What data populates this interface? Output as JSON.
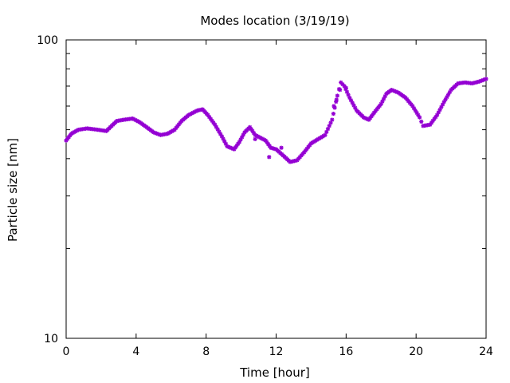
{
  "chart_data": {
    "type": "scatter",
    "title": "Modes location (3/19/19)",
    "xlabel": "Time [hour]",
    "ylabel": "Particle size [nm]",
    "xlim": [
      0,
      24
    ],
    "ylim": [
      10,
      100
    ],
    "yscale": "log",
    "grid": false,
    "xticks": [
      "0",
      "4",
      "8",
      "12",
      "16",
      "20",
      "24"
    ],
    "yticks": [
      "10",
      "100"
    ],
    "series_color": "#9400d3",
    "marker": "asterisk",
    "anchors": [
      [
        0.0,
        46
      ],
      [
        0.3,
        48.5
      ],
      [
        0.7,
        50
      ],
      [
        1.2,
        50.5
      ],
      [
        1.8,
        50
      ],
      [
        2.3,
        49.5
      ],
      [
        2.6,
        51.5
      ],
      [
        2.9,
        53.5
      ],
      [
        3.3,
        54
      ],
      [
        3.8,
        54.5
      ],
      [
        4.2,
        53
      ],
      [
        4.6,
        51
      ],
      [
        5.0,
        49
      ],
      [
        5.4,
        48
      ],
      [
        5.8,
        48.5
      ],
      [
        6.2,
        50
      ],
      [
        6.6,
        53.5
      ],
      [
        7.0,
        56
      ],
      [
        7.5,
        58
      ],
      [
        7.8,
        58.5
      ],
      [
        8.1,
        56
      ],
      [
        8.5,
        52
      ],
      [
        8.9,
        47.5
      ],
      [
        9.2,
        44
      ],
      [
        9.6,
        43
      ],
      [
        9.9,
        45.5
      ],
      [
        10.2,
        49
      ],
      [
        10.5,
        51
      ],
      [
        10.8,
        48
      ],
      [
        11.1,
        47
      ],
      [
        11.4,
        46
      ],
      [
        11.7,
        43.5
      ],
      [
        12.0,
        43
      ],
      [
        12.4,
        41
      ],
      [
        12.8,
        39
      ],
      [
        13.2,
        39.5
      ],
      [
        13.6,
        42
      ],
      [
        14.0,
        45
      ],
      [
        14.4,
        46.5
      ],
      [
        14.8,
        48
      ],
      [
        15.2,
        54
      ],
      [
        15.5,
        65
      ],
      [
        15.7,
        72
      ],
      [
        15.9,
        70
      ],
      [
        16.2,
        64
      ],
      [
        16.6,
        58
      ],
      [
        17.0,
        55
      ],
      [
        17.3,
        54
      ],
      [
        17.6,
        57
      ],
      [
        18.0,
        61
      ],
      [
        18.3,
        66
      ],
      [
        18.6,
        68
      ],
      [
        19.0,
        66.5
      ],
      [
        19.4,
        64
      ],
      [
        19.8,
        60
      ],
      [
        20.2,
        55
      ],
      [
        20.4,
        51.5
      ],
      [
        20.8,
        52
      ],
      [
        21.2,
        56
      ],
      [
        21.6,
        62
      ],
      [
        22.0,
        68
      ],
      [
        22.4,
        71.5
      ],
      [
        22.8,
        72
      ],
      [
        23.2,
        71.5
      ],
      [
        23.6,
        72.5
      ],
      [
        24.0,
        74
      ]
    ],
    "outliers": [
      [
        10.8,
        46.5
      ],
      [
        11.6,
        40.5
      ],
      [
        12.3,
        43.5
      ],
      [
        15.3,
        60
      ],
      [
        15.45,
        63
      ],
      [
        15.65,
        68
      ],
      [
        16.0,
        69
      ]
    ]
  }
}
